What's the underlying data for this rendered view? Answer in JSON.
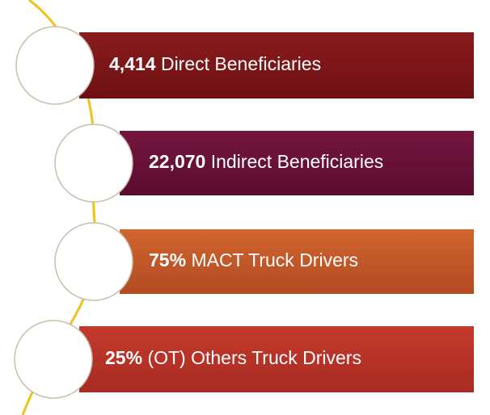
{
  "items": [
    {
      "number": "4,414",
      "label": "Direct Beneficiaries"
    },
    {
      "number": "22,070",
      "label": "Indirect Beneficiaries"
    },
    {
      "number": "75%",
      "label": "MACT Truck Drivers"
    },
    {
      "number": "25%",
      "label": "(OT) Others Truck Drivers"
    }
  ]
}
